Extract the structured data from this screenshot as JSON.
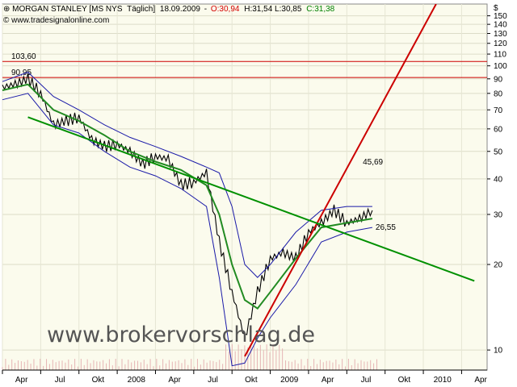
{
  "header": {
    "symbol_icon": "candlestick-icon",
    "instrument": "MORGAN STANLEY [MS NYS",
    "interval": "Täglich]",
    "date": "18.09.2009",
    "open": "O:30,94",
    "high_low": "H:31,54 L:30,85",
    "close": "C:31,38",
    "copyright": "© www.tradesignalonline.com",
    "colors": {
      "open": "#d40000",
      "close": "#008000"
    }
  },
  "watermark": "www.brokervorschlag.de",
  "chart_data": {
    "type": "line",
    "yscale": "log",
    "ylim": [
      8.5,
      165
    ],
    "currency_label": "$",
    "yticks": [
      150,
      140,
      130,
      120,
      110,
      100,
      90,
      80,
      70,
      60,
      50,
      40,
      30,
      20,
      10
    ],
    "xticks": [
      "Apr",
      "Jul",
      "Okt",
      "2008",
      "Apr",
      "Jul",
      "Okt",
      "2009",
      "Apr",
      "Jul",
      "Okt",
      "2010",
      "Apr"
    ],
    "grid": true,
    "series": [
      {
        "kind": "price",
        "color": "#000000",
        "x": [
          "2007-04",
          "2007-05",
          "2007-06",
          "2007-07",
          "2007-08",
          "2007-09",
          "2007-10",
          "2007-11",
          "2007-12",
          "2008-01",
          "2008-02",
          "2008-03",
          "2008-04",
          "2008-05",
          "2008-06",
          "2008-07",
          "2008-08",
          "2008-09",
          "2008-10",
          "2008-11",
          "2008-12",
          "2009-01",
          "2009-02",
          "2009-03",
          "2009-04",
          "2009-05",
          "2009-06",
          "2009-07",
          "2009-08",
          "2009-09"
        ],
        "values": [
          84,
          86,
          90,
          80,
          62,
          64,
          66,
          55,
          52,
          53,
          50,
          45,
          48,
          47,
          38,
          39,
          42,
          24,
          16,
          11,
          16,
          21,
          22,
          21,
          26,
          28,
          31,
          28,
          29,
          31
        ]
      },
      {
        "kind": "moving-average",
        "color": "#228b22",
        "x": [
          "2007-04",
          "2007-06",
          "2007-08",
          "2007-10",
          "2007-12",
          "2008-02",
          "2008-04",
          "2008-06",
          "2008-08",
          "2008-09",
          "2008-10",
          "2008-11",
          "2008-12",
          "2009-01",
          "2009-03",
          "2009-05",
          "2009-07",
          "2009-09"
        ],
        "values": [
          82,
          86,
          70,
          64,
          57,
          50,
          46,
          43,
          38,
          30,
          20,
          15,
          14,
          16,
          21,
          27,
          28,
          29
        ]
      },
      {
        "kind": "upper-band",
        "color": "#1a1aa8",
        "x": [
          "2007-04",
          "2007-06",
          "2007-08",
          "2007-10",
          "2007-12",
          "2008-02",
          "2008-04",
          "2008-06",
          "2008-08",
          "2008-09",
          "2008-10",
          "2008-11",
          "2008-12",
          "2009-01",
          "2009-03",
          "2009-05",
          "2009-07",
          "2009-09"
        ],
        "values": [
          88,
          95,
          78,
          70,
          62,
          56,
          52,
          48,
          44,
          42,
          32,
          20,
          18,
          20,
          26,
          31,
          32,
          32
        ]
      },
      {
        "kind": "lower-band",
        "color": "#1a1aa8",
        "x": [
          "2007-04",
          "2007-06",
          "2007-08",
          "2007-10",
          "2007-12",
          "2008-02",
          "2008-04",
          "2008-06",
          "2008-08",
          "2008-09",
          "2008-10",
          "2008-11",
          "2008-12",
          "2009-01",
          "2009-03",
          "2009-05",
          "2009-07",
          "2009-09"
        ],
        "values": [
          76,
          80,
          62,
          58,
          50,
          44,
          41,
          37,
          32,
          18,
          8.8,
          9,
          11,
          13,
          17,
          24,
          26,
          27
        ]
      }
    ],
    "trendlines": [
      {
        "color": "#cc0000",
        "from": [
          "2008-11",
          9.5
        ],
        "to": [
          "2010-02",
          165
        ]
      },
      {
        "color": "#009000",
        "from": [
          "2007-06",
          66
        ],
        "to": [
          "2010-05",
          17.5
        ]
      }
    ],
    "levels": [
      {
        "label": "103,60",
        "value": 103.6,
        "color": "#cc0000"
      },
      {
        "label": "90,95",
        "value": 90.95,
        "color": "#cc0000"
      }
    ],
    "annotations": [
      {
        "text": "45,69",
        "color": "#cc0000",
        "x": "2009-08",
        "y": 45
      },
      {
        "text": "26,55",
        "color": "#008000",
        "x": "2009-09",
        "y": 26.5
      }
    ]
  }
}
